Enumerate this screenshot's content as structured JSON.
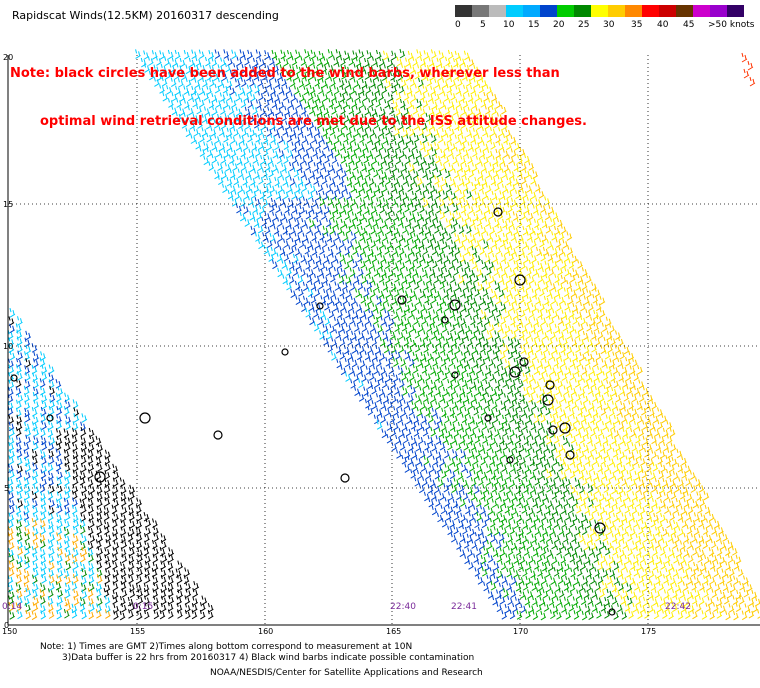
{
  "title": "Rapidscat Winds(12.5KM) 20160317 descending",
  "note": {
    "line1": "Note: black circles have been added to the wind barbs, wherever less than",
    "line2": "optimal wind retrieval conditions are met due to the ISS attitude changes."
  },
  "legend": {
    "colors": [
      "#333333",
      "#777777",
      "#bbbbbb",
      "#00ccff",
      "#00aaff",
      "#0044cc",
      "#00cc00",
      "#008800",
      "#ffff00",
      "#ffcc00",
      "#ff8800",
      "#ff0000",
      "#cc0000",
      "#663300",
      "#cc00cc",
      "#9900cc",
      "#330066"
    ],
    "labels": [
      "0",
      "5",
      "10",
      "15",
      "20",
      "25",
      "30",
      "35",
      "40",
      "45",
      ">50 knots"
    ]
  },
  "axes": {
    "lat_labels": [
      "20",
      "15",
      "10",
      "5",
      "0"
    ],
    "lon_labels": [
      "150",
      "155",
      "160",
      "165",
      "170",
      "175"
    ]
  },
  "time_labels": [
    "0:14",
    "0:15",
    "22:40",
    "22:41",
    "22:42"
  ],
  "footer": {
    "line1": "Note: 1) Times are GMT 2)Times along bottom correspond to measurement at 10N",
    "line2": "3)Data buffer is 22 hrs from 20160317 4) Black wind barbs indicate possible contamination",
    "credit": "NOAA/NESDIS/Center for Satellite Applications and Research"
  }
}
